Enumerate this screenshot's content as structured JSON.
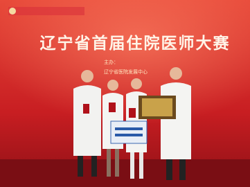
{
  "title": "辽宁省首届住院医师大赛",
  "host_label": "主办：",
  "organizer": "辽宁省医院发展中心"
}
